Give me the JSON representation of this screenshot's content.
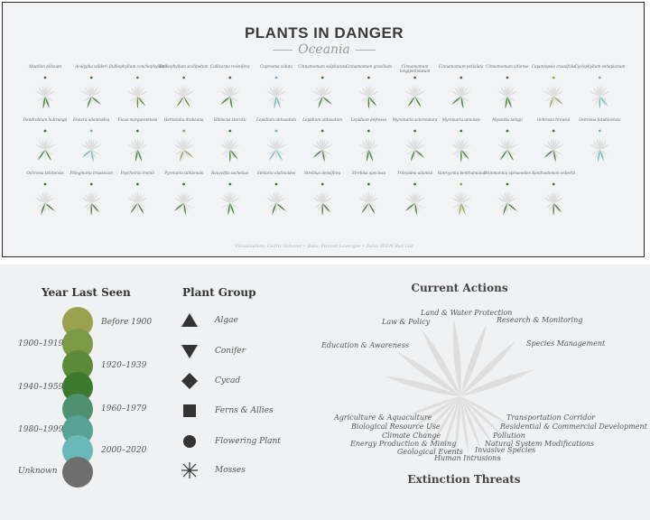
{
  "header": {
    "title": "PLANTS IN DANGER",
    "subtitle": "Oceania"
  },
  "footer": {
    "text": "Visualization: Cédric Scherer  •  Data: Florent Lavergne  •  Data: IUCN Red List"
  },
  "colors": {
    "before_1900": "#9aa24f",
    "1900_1919": "#7a9a45",
    "1920_1939": "#5b8a38",
    "1940_1959": "#3d7a2e",
    "1960_1979": "#4e9070",
    "1980_1999": "#58a395",
    "2000_2020": "#6ab9b9",
    "unknown": "#6e6e6e",
    "ray": "#dcdcdc"
  },
  "chart_data": {
    "type": "radial-glyph-grid",
    "plants": [
      {
        "name": "Abutilon pilosum",
        "year_color": "1940_1959"
      },
      {
        "name": "Acalypha wilderi",
        "year_color": "1940_1959"
      },
      {
        "name": "Bulbophyllum conchophyllum",
        "year_color": "1920_1939"
      },
      {
        "name": "Bulbophyllum scolipetum",
        "year_color": "1920_1939"
      },
      {
        "name": "Callicarpa resinifera",
        "year_color": "1940_1959"
      },
      {
        "name": "Coprosma voluta",
        "year_color": "2000_2020"
      },
      {
        "name": "Cinnamomum sulphurata",
        "year_color": "1940_1959"
      },
      {
        "name": "Cinnamomum gracilium",
        "year_color": "1940_1959"
      },
      {
        "name": "Cinnamomum longipetiolatum",
        "year_color": "1940_1959"
      },
      {
        "name": "Cinnamomum petiolata",
        "year_color": "1940_1959"
      },
      {
        "name": "Cinnamomum vitiense",
        "year_color": "1940_1959"
      },
      {
        "name": "Cupaniopsis crassifolia",
        "year_color": "before_1900"
      },
      {
        "name": "Cyclophyllum sehapianum",
        "year_color": "2000_2020"
      },
      {
        "name": "Dendrobium hollrungii",
        "year_color": "1940_1959"
      },
      {
        "name": "Ennera allantoidea",
        "year_color": "2000_2020"
      },
      {
        "name": "Ficus margaretensis",
        "year_color": "1940_1959"
      },
      {
        "name": "Hernandia drakeana",
        "year_color": "before_1900"
      },
      {
        "name": "Hibiscus storckii",
        "year_color": "1940_1959"
      },
      {
        "name": "Lepidium obtusatum",
        "year_color": "2000_2020"
      },
      {
        "name": "Lepidium obtusatum",
        "year_color": "1940_1959"
      },
      {
        "name": "Lepidium defressa",
        "year_color": "1940_1959"
      },
      {
        "name": "Myrsinaria scleroneura",
        "year_color": "1940_1959"
      },
      {
        "name": "Myrsinaria uinensis",
        "year_color": "1940_1959"
      },
      {
        "name": "Myosotis laingii",
        "year_color": "1940_1959"
      },
      {
        "name": "Ochrosia brownii",
        "year_color": "1940_1959"
      },
      {
        "name": "Ochrosia fatuhivensis",
        "year_color": "2000_2020"
      },
      {
        "name": "Ochrosia tahitensis",
        "year_color": "1940_1959"
      },
      {
        "name": "Phlegmaria brassicum",
        "year_color": "1940_1959"
      },
      {
        "name": "Psychotria irwinii",
        "year_color": "1940_1959"
      },
      {
        "name": "Pyrenaria tahitensis",
        "year_color": "1940_1959"
      },
      {
        "name": "Rauvolfia sachetiae",
        "year_color": "1940_1959"
      },
      {
        "name": "Stellaria elatinoides",
        "year_color": "1940_1959"
      },
      {
        "name": "Streblus densiflora",
        "year_color": "1940_1959"
      },
      {
        "name": "Streblus speciosa",
        "year_color": "1940_1959"
      },
      {
        "name": "Trilepidea adamsii",
        "year_color": "1940_1959"
      },
      {
        "name": "Vanroyenia benthamiana",
        "year_color": "before_1900"
      },
      {
        "name": "Weinmannia spiraeoides",
        "year_color": "1940_1959"
      },
      {
        "name": "Xanthostemon sebertii",
        "year_color": "1940_1959"
      }
    ]
  },
  "legend": {
    "year_title": "Year Last Seen",
    "year_labels": {
      "before_1900": "Before 1900",
      "1900_1919": "1900–1919",
      "1920_1939": "1920–1939",
      "1940_1959": "1940–1959",
      "1960_1979": "1960–1979",
      "1980_1999": "1980–1999",
      "2000_2020": "2000–2020",
      "unknown": "Unknown"
    },
    "group_title": "Plant Group",
    "groups": [
      "Algae",
      "Conifer",
      "Cycad",
      "Ferns & Allies",
      "Flowering Plant",
      "Mosses"
    ],
    "actions_title": "Current Actions",
    "threats_title": "Extinction Threats",
    "actions": [
      "Land & Water Protection",
      "Law & Policy",
      "Research & Monitoring",
      "Education & Awareness",
      "Species Management"
    ],
    "threats": [
      "Agriculture & Aquaculture",
      "Biological Resource Use",
      "Climate Change",
      "Energy Production & Mining",
      "Geological Events",
      "Human Intrusions",
      "Invasive Species",
      "Pollution",
      "Natural System Modifications",
      "Residential & Commercial Development",
      "Transportation Corridor"
    ]
  }
}
